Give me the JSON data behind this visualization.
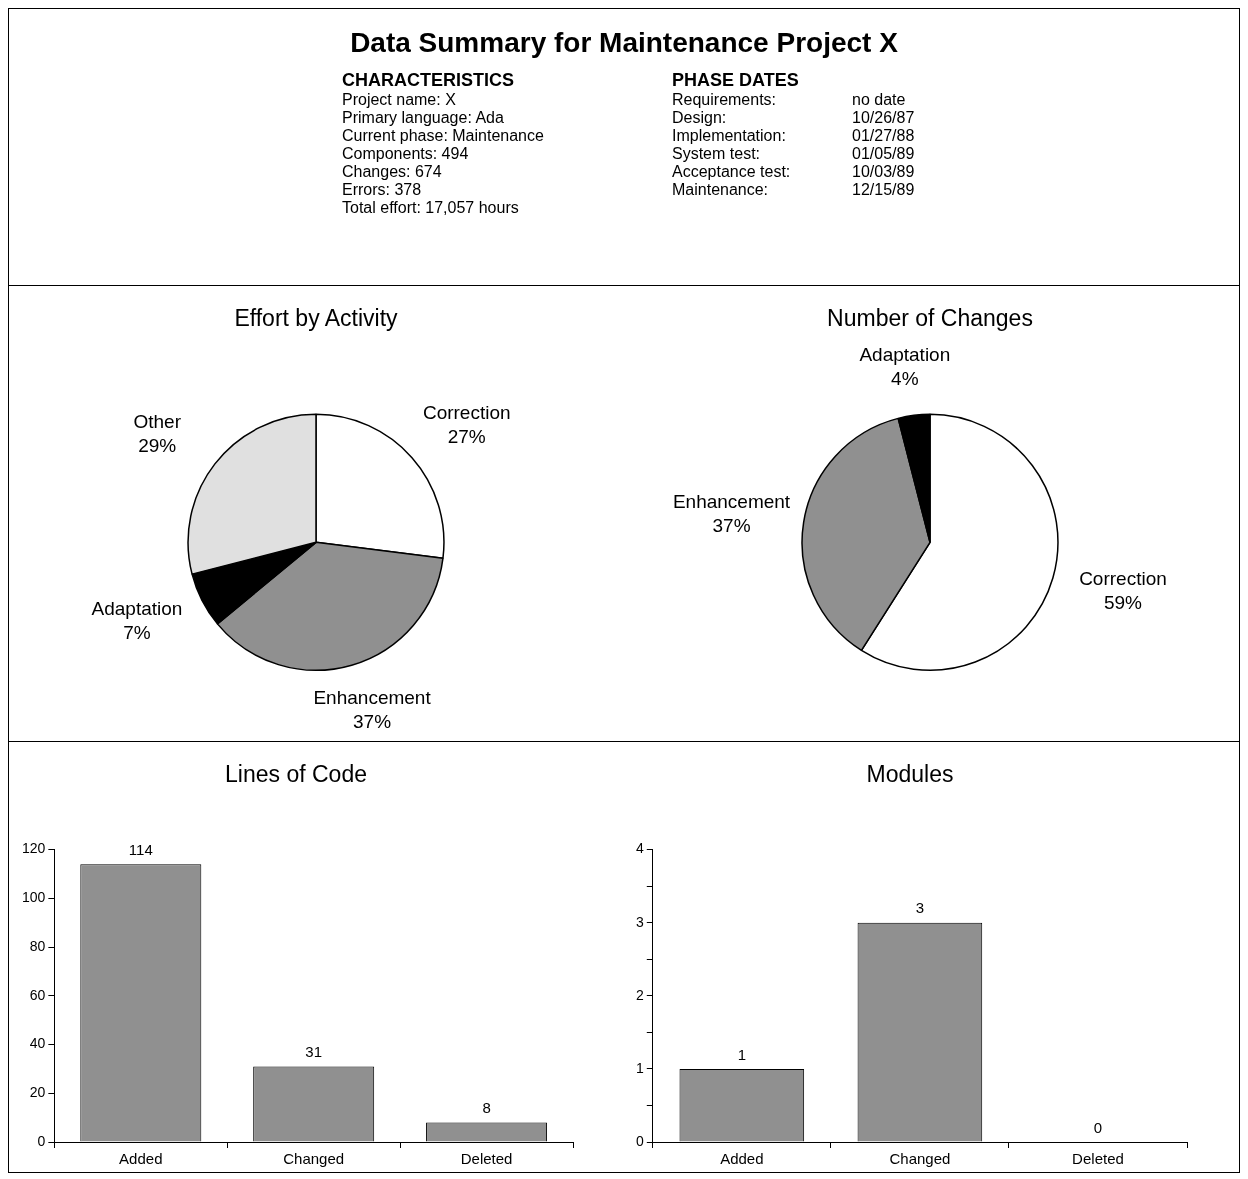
{
  "chart_data": [
    {
      "type": "other",
      "title": "Data Summary for Maintenance Project X",
      "subtitle": "CHARACTERISTICS",
      "annotations": [
        "Project name: X",
        "Primary language: Ada",
        "Current phase: Maintenance",
        "Components: 494",
        "Changes: 674",
        "Errors: 378",
        "Total effort: 17,057 hours"
      ]
    },
    {
      "type": "other",
      "subtitle": "PHASE DATES",
      "annotations": [
        "Requirements: no date",
        "Design: 10/26/87",
        "Implementation: 01/27/88",
        "System test: 01/05/89",
        "Acceptance test: 10/03/89",
        "Maintenance: 12/15/89"
      ]
    },
    {
      "type": "pie",
      "title": "Effort by Activity",
      "categories": [
        "Correction",
        "Enhancement",
        "Adaptation",
        "Other"
      ],
      "values": [
        27,
        37,
        7,
        29
      ],
      "value_labels": [
        "27%",
        "37%",
        "7%",
        "29%"
      ],
      "colors": [
        "#ffffff",
        "#909090",
        "#000000",
        "#e0e0e0"
      ]
    },
    {
      "type": "pie",
      "title": "Number of Changes",
      "categories": [
        "Correction",
        "Enhancement",
        "Adaptation"
      ],
      "values": [
        59,
        37,
        4
      ],
      "value_labels": [
        "59%",
        "37%",
        "4%"
      ],
      "colors": [
        "#ffffff",
        "#909090",
        "#000000"
      ]
    },
    {
      "type": "bar",
      "title": "Lines of Code",
      "categories": [
        "Added",
        "Changed",
        "Deleted"
      ],
      "values": [
        114,
        31,
        8
      ],
      "color": "#909090",
      "ylim": [
        0,
        120
      ],
      "yticks": [
        0,
        20,
        40,
        60,
        80,
        100,
        120
      ],
      "data_labels": true
    },
    {
      "type": "bar",
      "title": "Modules",
      "categories": [
        "Added",
        "Changed",
        "Deleted"
      ],
      "values": [
        1,
        3,
        0
      ],
      "color": "#909090",
      "ylim": [
        0,
        4
      ],
      "yticks": [
        0,
        {
          "value": 0.5,
          "label": null
        },
        1,
        {
          "value": 1.5,
          "label": null
        },
        2,
        {
          "value": 2.5,
          "label": null
        },
        3,
        {
          "value": 3.5,
          "label": null
        },
        4
      ],
      "data_labels": true
    }
  ]
}
